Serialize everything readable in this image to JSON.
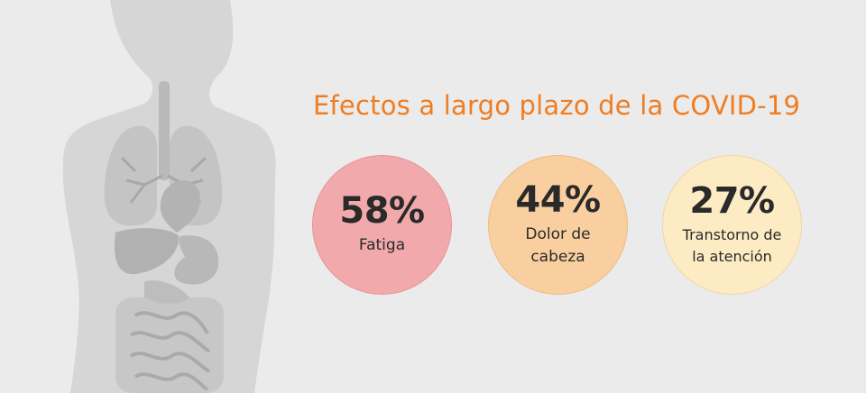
{
  "title": "Efectos a largo plazo de la COVID-19",
  "colors": {
    "title": "#ef7d22",
    "circle_fatigue": "#f2a9ac",
    "circle_headache": "#f9cfa0",
    "circle_attention": "#fdebc4",
    "silhouette": "#d6d6d6",
    "organs": "#c2c2c2"
  },
  "stats": [
    {
      "value": "58%",
      "label": "Fatiga"
    },
    {
      "value": "44%",
      "label": "Dolor de\ncabeza"
    },
    {
      "value": "27%",
      "label": "Transtorno de\nla atención"
    }
  ]
}
